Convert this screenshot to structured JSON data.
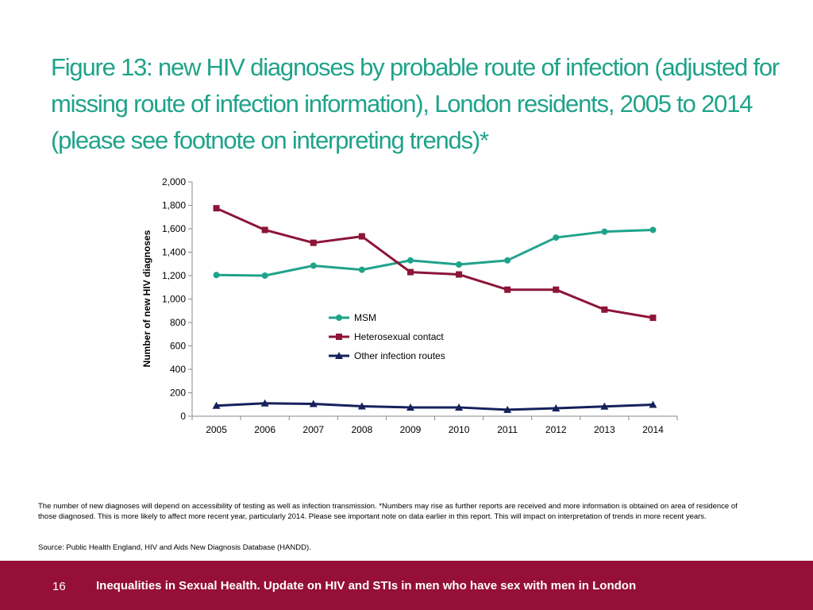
{
  "title": "Figure 13: new HIV diagnoses by probable route of infection (adjusted for missing route of infection information), London residents, 2005 to 2014 (please see footnote on interpreting trends)*",
  "footnote": "The number of new diagnoses will depend on accessibility of testing as well as infection transmission. *Numbers may rise as further reports are received and more information is obtained on area of residence of those diagnosed. This is more likely to affect more recent year, particularly 2014. Please see important note on data earlier in this report. This will impact on interpretation of trends in more recent years.",
  "source": "Source: Public Health England, HIV and Aids New Diagnosis Database (HANDD).",
  "footer": {
    "page_number": "16",
    "text": "Inequalities in Sexual Health. Update on HIV and STIs in men who have sex with men in London",
    "color": "#950f38"
  },
  "chart_data": {
    "type": "line",
    "ylabel": "Number of new HIV diagnoses",
    "xlabel": "",
    "ylim": [
      0,
      2000
    ],
    "yticks": [
      0,
      200,
      400,
      600,
      800,
      1000,
      1200,
      1400,
      1600,
      1800,
      2000
    ],
    "ytick_labels": [
      "0",
      "200",
      "400",
      "600",
      "800",
      "1,000",
      "1,200",
      "1,400",
      "1,600",
      "1,800",
      "2,000"
    ],
    "categories": [
      "2005",
      "2006",
      "2007",
      "2008",
      "2009",
      "2010",
      "2011",
      "2012",
      "2013",
      "2014"
    ],
    "legend_position": "center-right",
    "grid": false,
    "series": [
      {
        "name": "MSM",
        "color": "#1fa38a",
        "marker": "circle",
        "values": [
          1205,
          1200,
          1285,
          1250,
          1330,
          1295,
          1330,
          1525,
          1575,
          1590
        ]
      },
      {
        "name": "Heterosexual contact",
        "color": "#8c1538",
        "marker": "square",
        "values": [
          1775,
          1590,
          1480,
          1535,
          1230,
          1210,
          1080,
          1080,
          910,
          840
        ]
      },
      {
        "name": "Other infection routes",
        "color": "#16215c",
        "marker": "triangle",
        "values": [
          90,
          110,
          105,
          85,
          75,
          75,
          55,
          68,
          83,
          98
        ]
      }
    ]
  }
}
